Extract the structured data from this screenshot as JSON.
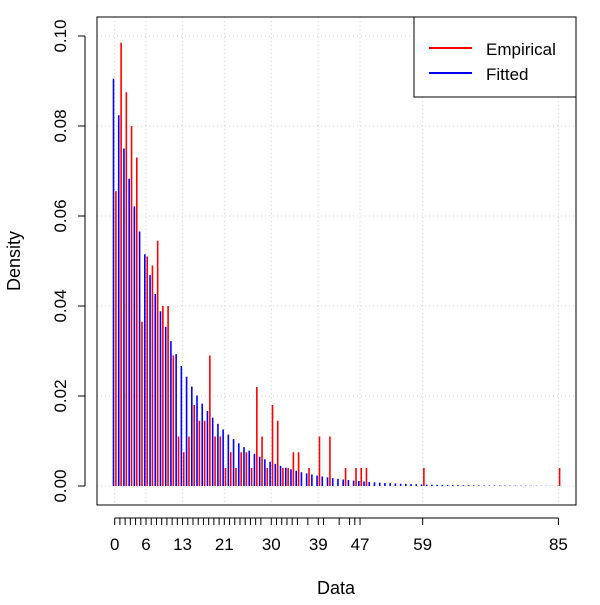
{
  "chart_data": {
    "type": "bar",
    "title": "",
    "xlabel": "Data",
    "ylabel": "Density",
    "xlim": [
      -1,
      86
    ],
    "ylim": [
      0,
      0.1
    ],
    "grid": true,
    "legend_position": "top-right",
    "x_tick_labels": [
      0,
      6,
      13,
      21,
      30,
      39,
      47,
      59,
      85
    ],
    "y_tick_labels": [
      "0.00",
      "0.02",
      "0.04",
      "0.06",
      "0.08",
      "0.10"
    ],
    "rug": [
      0,
      1,
      2,
      3,
      4,
      5,
      6,
      7,
      8,
      9,
      10,
      11,
      12,
      13,
      14,
      15,
      16,
      17,
      18,
      19,
      20,
      21,
      22,
      23,
      24,
      25,
      26,
      27,
      28,
      30,
      31,
      32,
      33,
      34,
      35,
      37,
      39,
      40,
      43,
      45,
      46,
      47,
      59,
      85
    ],
    "series": [
      {
        "name": "Empirical",
        "color": "#ff0000",
        "points": [
          [
            0,
            0.0655
          ],
          [
            1,
            0.0985
          ],
          [
            2,
            0.0875
          ],
          [
            3,
            0.08
          ],
          [
            4,
            0.073
          ],
          [
            5,
            0.0365
          ],
          [
            6,
            0.051
          ],
          [
            7,
            0.049
          ],
          [
            8,
            0.0545
          ],
          [
            9,
            0.04
          ],
          [
            10,
            0.04
          ],
          [
            11,
            0.029
          ],
          [
            12,
            0.011
          ],
          [
            13,
            0.0075
          ],
          [
            14,
            0.011
          ],
          [
            15,
            0.018
          ],
          [
            16,
            0.0145
          ],
          [
            17,
            0.0145
          ],
          [
            18,
            0.029
          ],
          [
            19,
            0.011
          ],
          [
            20,
            0.011
          ],
          [
            21,
            0.004
          ],
          [
            22,
            0.0075
          ],
          [
            23,
            0.004
          ],
          [
            24,
            0.0075
          ],
          [
            25,
            0.0075
          ],
          [
            26,
            0.004
          ],
          [
            27,
            0.022
          ],
          [
            28,
            0.011
          ],
          [
            29,
            0.004
          ],
          [
            30,
            0.018
          ],
          [
            31,
            0.0145
          ],
          [
            32,
            0.004
          ],
          [
            33,
            0.004
          ],
          [
            34,
            0.0075
          ],
          [
            35,
            0.0075
          ],
          [
            37,
            0.004
          ],
          [
            39,
            0.011
          ],
          [
            41,
            0.011
          ],
          [
            44,
            0.004
          ],
          [
            46,
            0.004
          ],
          [
            47,
            0.004
          ],
          [
            48,
            0.004
          ],
          [
            59,
            0.004
          ],
          [
            85,
            0.004
          ]
        ]
      },
      {
        "name": "Fitted",
        "color": "#0000ff",
        "decay": 0.9103,
        "start": 0.0905,
        "x_max": 85
      }
    ]
  }
}
